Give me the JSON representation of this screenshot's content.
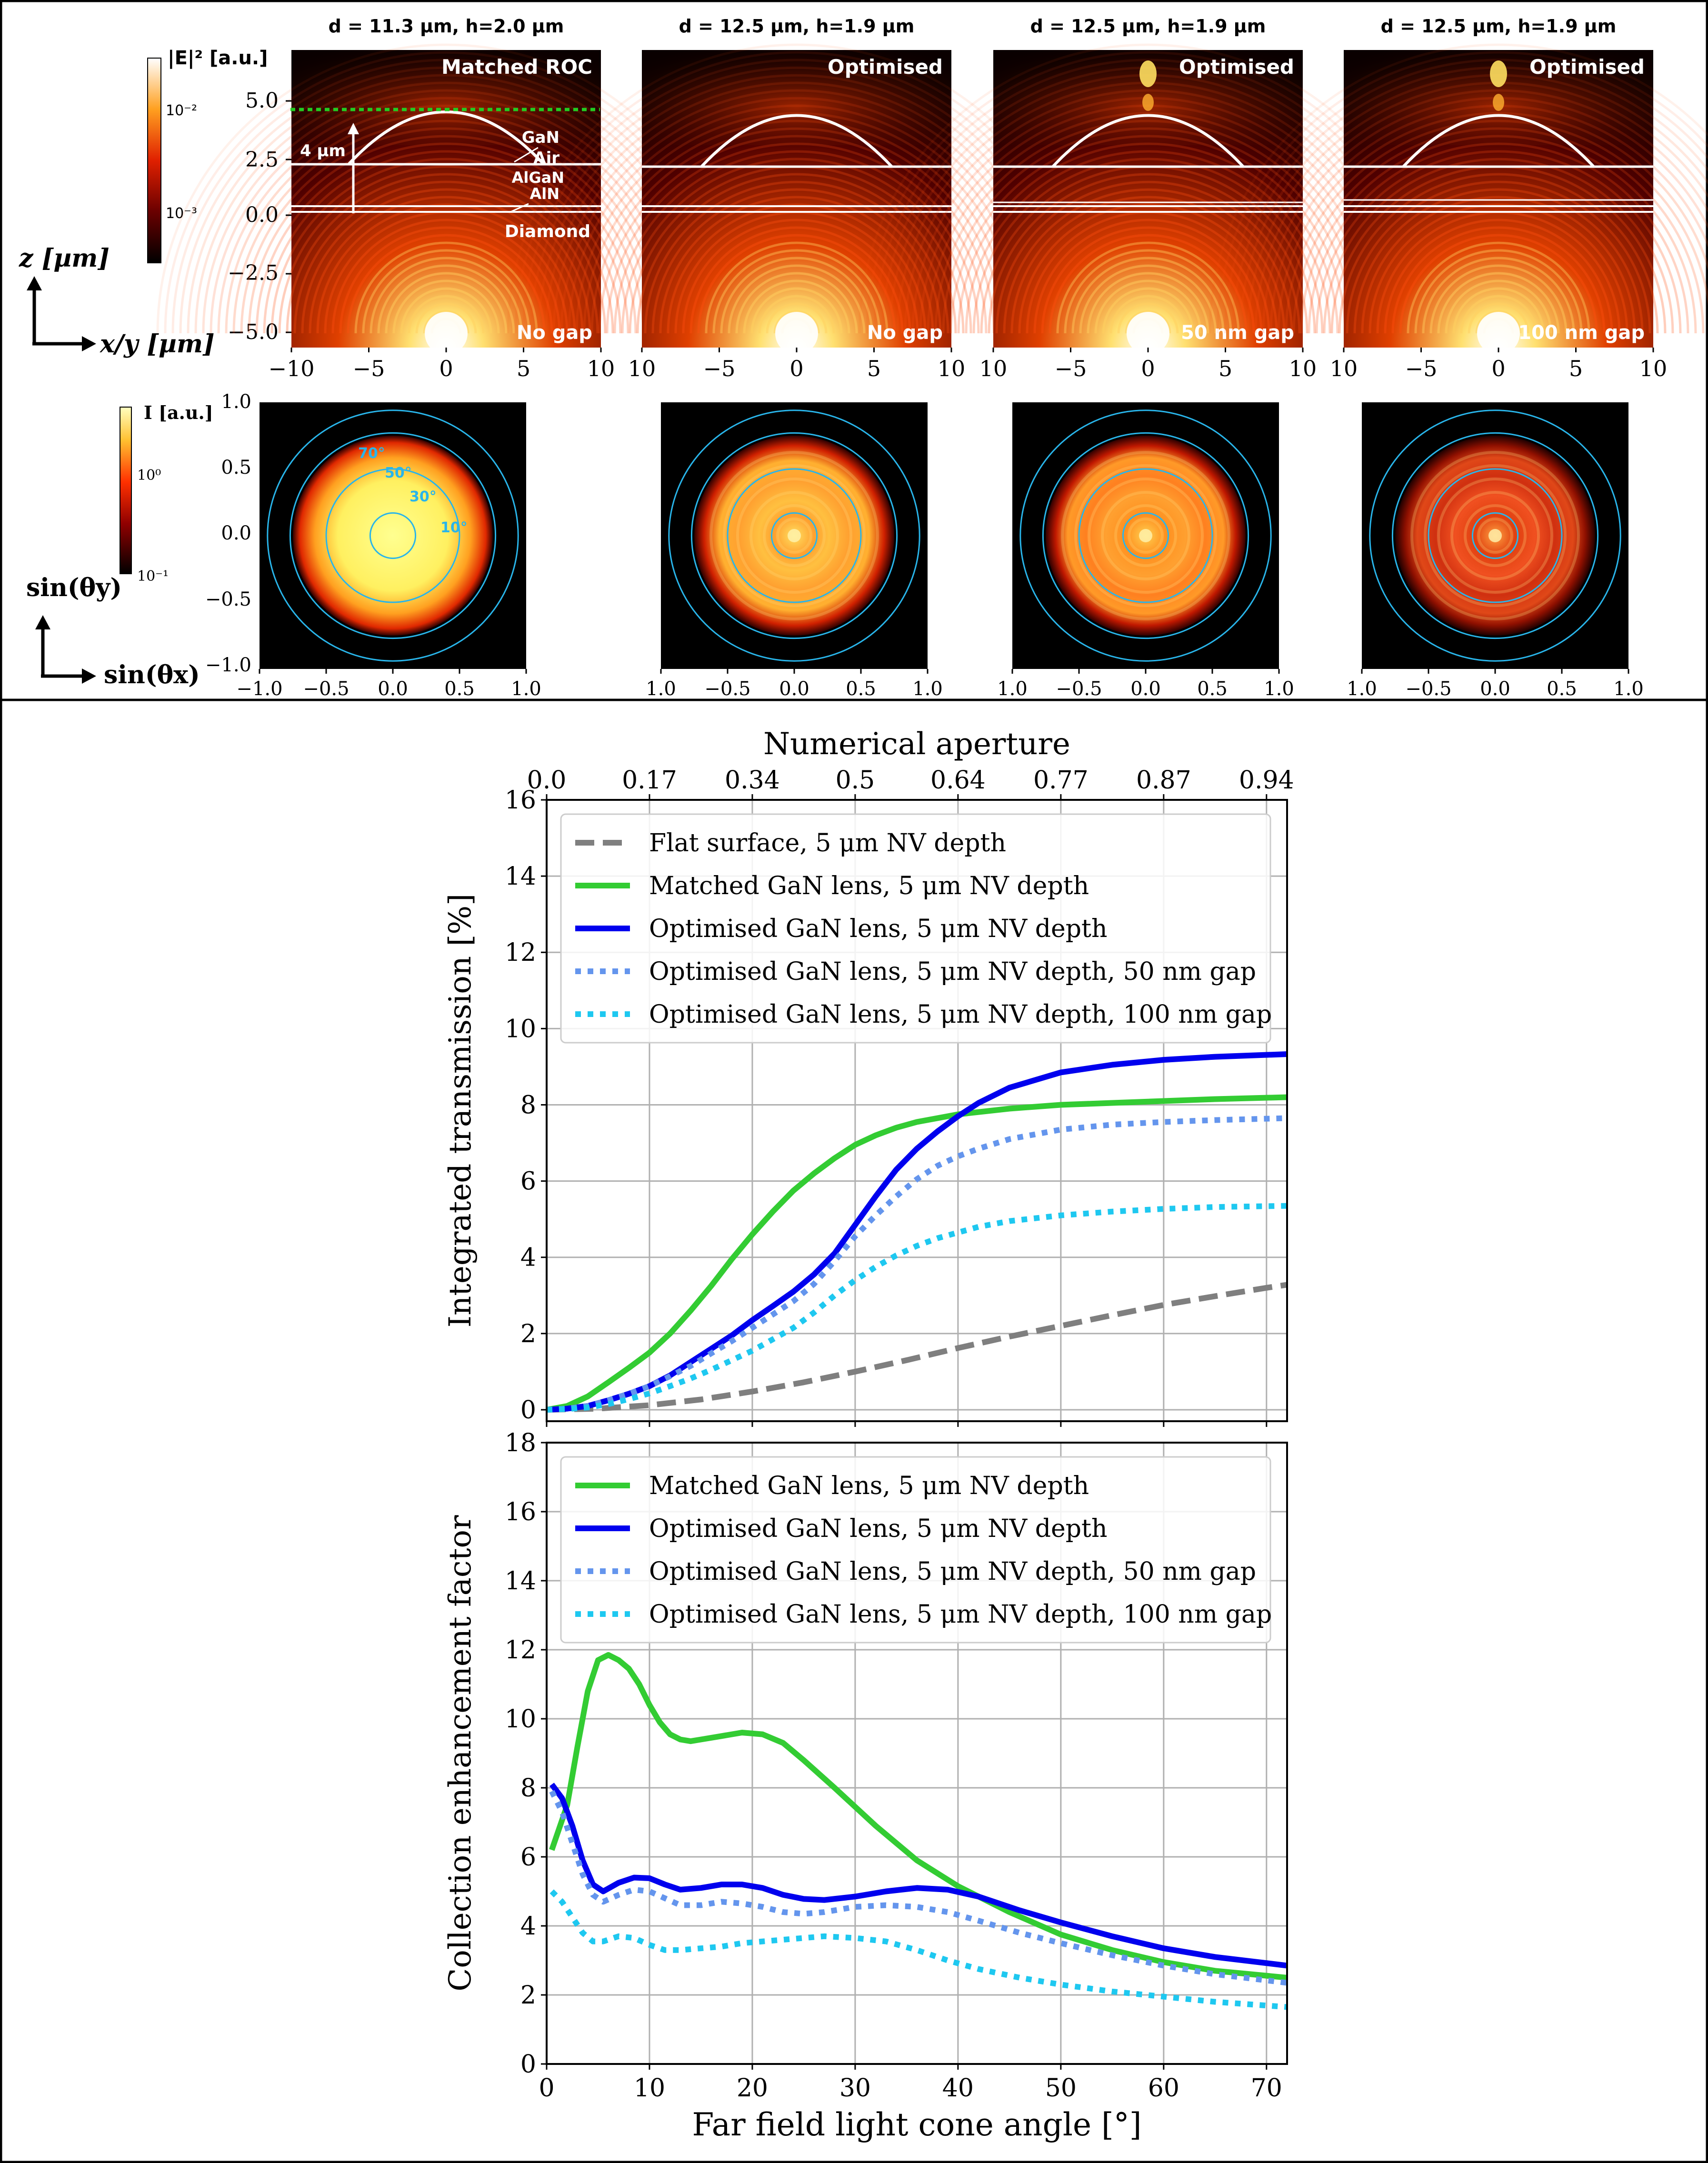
{
  "top": {
    "columns": [
      {
        "title": "d = 11.3 µm, h=2.0 µm",
        "tag": "Matched ROC",
        "gap": "No gap"
      },
      {
        "title": "d = 12.5 µm, h=1.9 µm",
        "tag": "Optimised",
        "gap": "No gap"
      },
      {
        "title": "d = 12.5 µm, h=1.9 µm",
        "tag": "Optimised",
        "gap": "50 nm gap"
      },
      {
        "title": "d = 12.5 µm, h=1.9 µm",
        "tag": "Optimised",
        "gap": "100 nm gap"
      }
    ],
    "layers": {
      "gan": "GaN",
      "air": "Air",
      "algan": "AlGaN",
      "aln": "AlN",
      "diamond": "Diamond",
      "height": "4 µm"
    },
    "field_colorbar": {
      "label": "|E|² [a.u.]",
      "ticks": [
        "10⁻²",
        "10⁻³"
      ]
    },
    "far_colorbar": {
      "label": "I [a.u.]",
      "ticks": [
        "10⁰",
        "10⁻¹"
      ]
    },
    "field_axes": {
      "z_label": "z [µm]",
      "xy_label": "x/y [µm]",
      "y_ticks": [
        "5.0",
        "2.5",
        "0.0",
        "−2.5",
        "−5.0"
      ],
      "x_ticks": [
        "−10",
        "−5",
        "0",
        "5",
        "10"
      ],
      "x_ticks_inner": [
        "10",
        "−5",
        "0",
        "5",
        "10"
      ]
    },
    "far_axes": {
      "y_label": "sin(θy)",
      "x_label": "sin(θx)",
      "ticks": [
        "−1.0",
        "−0.5",
        "0.0",
        "0.5",
        "1.0"
      ],
      "ticks_inner": [
        "1.0",
        "−0.5",
        "0.0",
        "0.5",
        "1.0"
      ],
      "angle_labels": [
        "70°",
        "50°",
        "30°",
        "10°"
      ]
    },
    "accent": "#29b5ea"
  },
  "chart_data": [
    {
      "type": "line",
      "top_axis_label": "Numerical aperture",
      "top_ticks": [
        "0.0",
        "0.17",
        "0.34",
        "0.5",
        "0.64",
        "0.77",
        "0.87",
        "0.94"
      ],
      "top_tick_angles": [
        0,
        10,
        20,
        30,
        40,
        50,
        60,
        70
      ],
      "xlabel": "Far field light cone angle [°]",
      "ylabel": "Integrated transmission [%]",
      "xlim": [
        0,
        72
      ],
      "ylim": [
        -0.3,
        16
      ],
      "xticks": [
        0,
        10,
        20,
        30,
        40,
        50,
        60,
        70
      ],
      "yticks": [
        0,
        2,
        4,
        6,
        8,
        10,
        12,
        14,
        16
      ],
      "grid": true,
      "legend": "top-left",
      "series": [
        {
          "name": "Flat surface, 5 μm NV depth",
          "color": "#7f7f7f",
          "dash": "dashed",
          "x": [
            0,
            5,
            10,
            15,
            20,
            25,
            30,
            35,
            40,
            45,
            50,
            55,
            60,
            65,
            70,
            72
          ],
          "y": [
            0,
            0.03,
            0.12,
            0.27,
            0.48,
            0.72,
            1.0,
            1.3,
            1.62,
            1.92,
            2.2,
            2.48,
            2.75,
            2.98,
            3.2,
            3.28
          ]
        },
        {
          "name": "Matched GaN lens, 5 μm NV depth",
          "color": "#33cc33",
          "dash": "solid",
          "x": [
            0,
            2,
            4,
            6,
            8,
            10,
            12,
            14,
            16,
            18,
            20,
            22,
            24,
            26,
            28,
            30,
            32,
            34,
            36,
            38,
            40,
            45,
            50,
            55,
            60,
            65,
            72
          ],
          "y": [
            0,
            0.1,
            0.35,
            0.72,
            1.1,
            1.5,
            2.0,
            2.6,
            3.25,
            3.95,
            4.6,
            5.2,
            5.75,
            6.2,
            6.6,
            6.95,
            7.2,
            7.4,
            7.55,
            7.65,
            7.75,
            7.9,
            8.0,
            8.05,
            8.1,
            8.15,
            8.2
          ]
        },
        {
          "name": "Optimised GaN lens, 5 μm NV depth",
          "color": "#0000ee",
          "dash": "solid",
          "x": [
            0,
            2,
            4,
            6,
            8,
            10,
            12,
            14,
            16,
            18,
            20,
            22,
            24,
            26,
            28,
            30,
            32,
            34,
            36,
            38,
            40,
            42,
            45,
            50,
            55,
            60,
            65,
            72
          ],
          "y": [
            0,
            0.03,
            0.1,
            0.25,
            0.42,
            0.62,
            0.9,
            1.25,
            1.6,
            1.95,
            2.35,
            2.72,
            3.1,
            3.55,
            4.1,
            4.85,
            5.6,
            6.3,
            6.85,
            7.3,
            7.7,
            8.05,
            8.45,
            8.85,
            9.05,
            9.18,
            9.26,
            9.33
          ]
        },
        {
          "name": "Optimised GaN lens, 5 μm NV depth, 50 nm gap",
          "color": "#6495ed",
          "dash": "dotted",
          "x": [
            0,
            2,
            4,
            6,
            8,
            10,
            12,
            14,
            16,
            18,
            20,
            22,
            24,
            26,
            28,
            30,
            32,
            34,
            36,
            38,
            40,
            42,
            45,
            50,
            55,
            60,
            65,
            72
          ],
          "y": [
            0,
            0.03,
            0.1,
            0.25,
            0.42,
            0.62,
            0.88,
            1.15,
            1.48,
            1.8,
            2.15,
            2.5,
            2.85,
            3.3,
            3.9,
            4.55,
            5.1,
            5.6,
            6.05,
            6.4,
            6.65,
            6.85,
            7.1,
            7.35,
            7.48,
            7.55,
            7.6,
            7.65
          ]
        },
        {
          "name": "Optimised GaN lens, 5 μm NV depth, 100 nm gap",
          "color": "#1ec8f0",
          "dash": "dotted",
          "x": [
            0,
            2,
            4,
            6,
            8,
            10,
            12,
            14,
            16,
            18,
            20,
            22,
            24,
            26,
            28,
            30,
            32,
            34,
            36,
            38,
            40,
            42,
            45,
            50,
            55,
            60,
            65,
            72
          ],
          "y": [
            0,
            0.02,
            0.06,
            0.15,
            0.28,
            0.43,
            0.62,
            0.82,
            1.05,
            1.3,
            1.55,
            1.85,
            2.15,
            2.55,
            3.0,
            3.4,
            3.75,
            4.05,
            4.3,
            4.5,
            4.65,
            4.8,
            4.95,
            5.1,
            5.2,
            5.27,
            5.32,
            5.35
          ]
        }
      ]
    },
    {
      "type": "line",
      "xlabel": "Far field light cone angle [°]",
      "ylabel": "Collection enhancement factor",
      "xlim": [
        0,
        72
      ],
      "ylim": [
        0,
        18
      ],
      "xticks": [
        0,
        10,
        20,
        30,
        40,
        50,
        60,
        70
      ],
      "yticks": [
        0,
        2,
        4,
        6,
        8,
        10,
        12,
        14,
        16,
        18
      ],
      "grid": true,
      "legend": "top-left",
      "series": [
        {
          "name": "Matched GaN lens, 5 μm NV depth",
          "color": "#33cc33",
          "dash": "solid",
          "x": [
            0.5,
            2,
            3,
            4,
            5,
            6,
            7,
            8,
            9,
            10,
            11,
            12,
            13,
            14,
            15,
            17,
            19,
            21,
            23,
            25,
            28,
            32,
            36,
            40,
            45,
            50,
            55,
            60,
            65,
            72
          ],
          "y": [
            6.2,
            7.5,
            9.2,
            10.8,
            11.7,
            11.85,
            11.7,
            11.45,
            11.0,
            10.4,
            9.9,
            9.55,
            9.4,
            9.35,
            9.4,
            9.5,
            9.6,
            9.55,
            9.3,
            8.8,
            8.0,
            6.9,
            5.9,
            5.15,
            4.4,
            3.75,
            3.3,
            2.95,
            2.7,
            2.5
          ]
        },
        {
          "name": "Optimised GaN lens, 5 μm NV depth",
          "color": "#0000ee",
          "dash": "solid",
          "x": [
            0.5,
            1.5,
            2.5,
            3.5,
            4.5,
            5.5,
            7,
            8.5,
            10,
            11.5,
            13,
            15,
            17,
            19,
            21,
            23,
            25,
            27,
            30,
            33,
            36,
            39,
            42,
            46,
            50,
            55,
            60,
            65,
            72
          ],
          "y": [
            8.1,
            7.7,
            6.9,
            5.9,
            5.2,
            5.0,
            5.25,
            5.4,
            5.38,
            5.2,
            5.05,
            5.1,
            5.2,
            5.2,
            5.1,
            4.9,
            4.78,
            4.75,
            4.85,
            5.0,
            5.1,
            5.05,
            4.85,
            4.45,
            4.1,
            3.7,
            3.35,
            3.1,
            2.85
          ]
        },
        {
          "name": "Optimised GaN lens, 5 μm NV depth, 50 nm gap",
          "color": "#6495ed",
          "dash": "dotted",
          "x": [
            0.5,
            1.5,
            2.5,
            3.5,
            4.5,
            5.5,
            7,
            8.5,
            10,
            11.5,
            13,
            15,
            17,
            19,
            21,
            23,
            25,
            27,
            30,
            33,
            36,
            39,
            42,
            46,
            50,
            55,
            60,
            65,
            72
          ],
          "y": [
            7.9,
            7.3,
            6.4,
            5.5,
            4.9,
            4.7,
            4.9,
            5.05,
            5.0,
            4.8,
            4.6,
            4.6,
            4.7,
            4.65,
            4.55,
            4.4,
            4.35,
            4.4,
            4.55,
            4.6,
            4.55,
            4.4,
            4.15,
            3.8,
            3.5,
            3.15,
            2.85,
            2.6,
            2.35
          ]
        },
        {
          "name": "Optimised GaN lens, 5 μm NV depth, 100 nm gap",
          "color": "#1ec8f0",
          "dash": "dotted",
          "x": [
            0.5,
            1.5,
            2.5,
            3.5,
            4.5,
            5.5,
            7,
            8.5,
            10,
            11.5,
            13,
            15,
            17,
            19,
            21,
            23,
            25,
            27,
            30,
            33,
            36,
            39,
            42,
            46,
            50,
            55,
            60,
            65,
            72
          ],
          "y": [
            5.0,
            4.7,
            4.25,
            3.8,
            3.55,
            3.55,
            3.7,
            3.65,
            3.45,
            3.3,
            3.3,
            3.35,
            3.4,
            3.5,
            3.55,
            3.6,
            3.65,
            3.7,
            3.65,
            3.55,
            3.3,
            3.0,
            2.75,
            2.5,
            2.3,
            2.1,
            1.95,
            1.8,
            1.65
          ]
        }
      ]
    }
  ]
}
